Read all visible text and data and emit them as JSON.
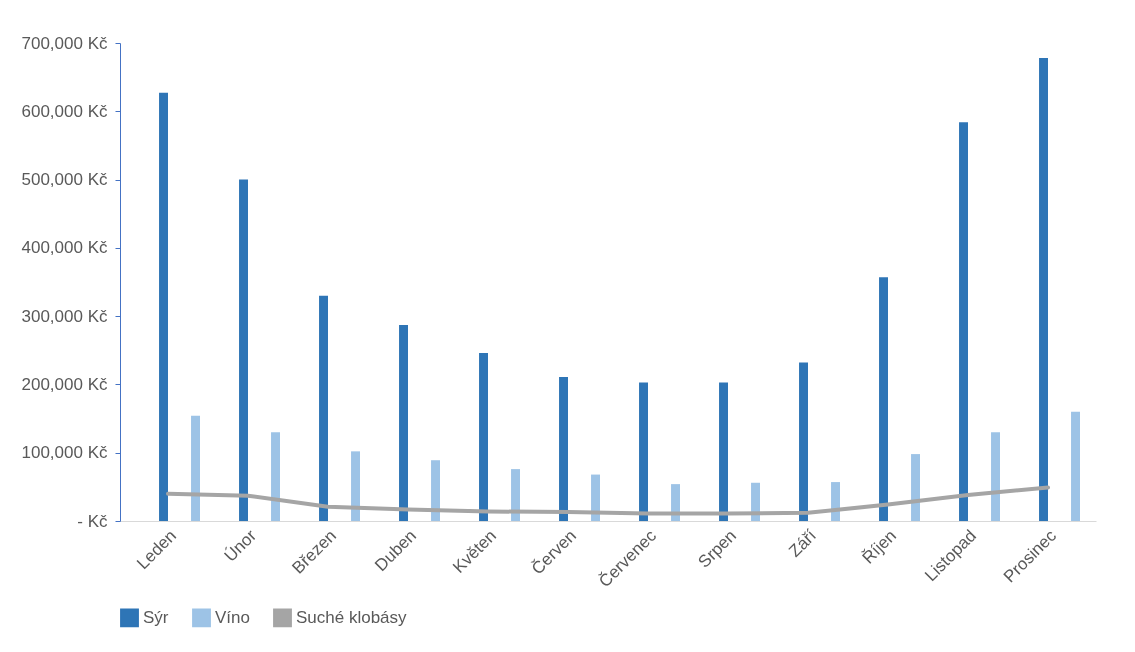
{
  "chart_data": {
    "type": "bar",
    "categories": [
      "Leden",
      "Únor",
      "Březen",
      "Duben",
      "Květen",
      "Červen",
      "Červenec",
      "Srpen",
      "Září",
      "Říjen",
      "Listopad",
      "Prosinec"
    ],
    "series": [
      {
        "name": "Sýr",
        "color": "#2e75b6",
        "values": [
          627000,
          500000,
          330000,
          287000,
          246000,
          211000,
          203000,
          203000,
          232000,
          357000,
          584000,
          678000
        ]
      },
      {
        "name": "Víno",
        "color": "#9dc3e6",
        "values": [
          154000,
          130000,
          102000,
          89000,
          76000,
          68000,
          54000,
          56000,
          57000,
          98000,
          130000,
          160000
        ]
      },
      {
        "name": "Suché klobásy",
        "type": "line",
        "color": "#a5a5a5",
        "values": [
          40000,
          37000,
          21000,
          17000,
          14000,
          13000,
          11000,
          11000,
          12000,
          24000,
          38000,
          49000
        ]
      }
    ],
    "ylim": [
      0,
      700000
    ],
    "yticks": [
      {
        "value": 0,
        "label": "-   Kč"
      },
      {
        "value": 100000,
        "label": "100,000 Kč"
      },
      {
        "value": 200000,
        "label": "200,000 Kč"
      },
      {
        "value": 300000,
        "label": "300,000 Kč"
      },
      {
        "value": 400000,
        "label": "400,000 Kč"
      },
      {
        "value": 500000,
        "label": "500,000 Kč"
      },
      {
        "value": 600000,
        "label": "600,000 Kč"
      },
      {
        "value": 700000,
        "label": "700,000 Kč"
      }
    ],
    "legend": "bottom",
    "line_style": "solid"
  }
}
